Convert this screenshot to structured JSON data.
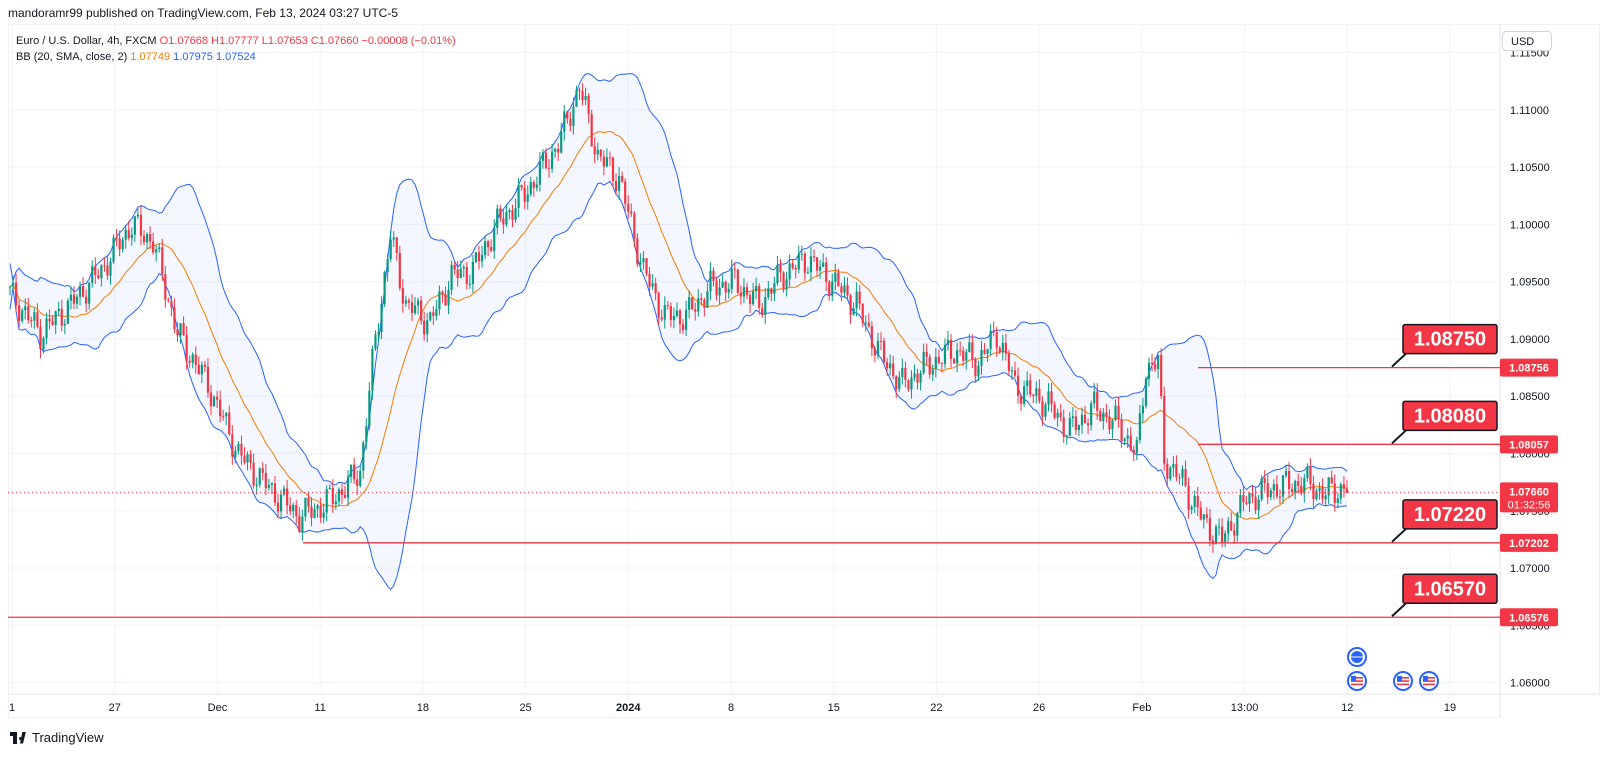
{
  "header": {
    "published_by": "mandoramr99 published on TradingView.com, Feb 13, 2024 03:27 UTC-5"
  },
  "legend": {
    "symbol": "Euro / U.S. Dollar, 4h, FXCM",
    "ohlc": "O1.07668  H1.07777  L1.07653  C1.07660  −0.00008 (−0.01%)",
    "indicator": "BB (20, SMA, close, 2)",
    "bb_basis": "1.07749",
    "bb_upper": "1.07975",
    "bb_lower": "1.07524"
  },
  "currency_button": "USD",
  "footer": {
    "brand": "TradingView"
  },
  "colors": {
    "up": "#089981",
    "down": "#f23645",
    "basis": "#f57c00",
    "band": "#2962ff",
    "band_fill": "#2962ff",
    "level_line": "#f23645",
    "label_bg": "#f23645",
    "label_border": "#131722"
  },
  "chart_data": {
    "type": "candlestick",
    "instrument": "EUR/USD",
    "timeframe": "4h",
    "x_ticks": [
      "1",
      "27",
      "Dec",
      "11",
      "18",
      "25",
      "2024",
      "8",
      "15",
      "22",
      "26",
      "Feb",
      "13:00",
      "12",
      "19"
    ],
    "y_ticks": [
      "1.11500",
      "1.11000",
      "1.10500",
      "1.10000",
      "1.09500",
      "1.09000",
      "1.08500",
      "1.08000",
      "1.07500",
      "1.07000",
      "1.06500",
      "1.06000"
    ],
    "ylim": [
      1.059,
      1.1175
    ],
    "current_price": "1.07660",
    "countdown": "01:32:56",
    "levels": [
      {
        "price": 1.0875,
        "label": "1.08750",
        "axis_label": "1.08756"
      },
      {
        "price": 1.0808,
        "label": "1.08080",
        "axis_label": "1.08057"
      },
      {
        "price": 1.0722,
        "label": "1.07220",
        "axis_label": "1.07202"
      },
      {
        "price": 1.0657,
        "label": "1.06570",
        "axis_label": "1.06576"
      }
    ],
    "close_path": [
      [
        0,
        1.094
      ],
      [
        10,
        1.0905
      ],
      [
        20,
        1.093
      ],
      [
        30,
        1.096
      ],
      [
        40,
        1.1
      ],
      [
        47,
        1.0985
      ],
      [
        55,
        1.0905
      ],
      [
        65,
        1.086
      ],
      [
        75,
        1.08
      ],
      [
        85,
        1.077
      ],
      [
        95,
        1.0745
      ],
      [
        103,
        1.0755
      ],
      [
        110,
        1.077
      ],
      [
        115,
        1.0785
      ],
      [
        120,
        1.09
      ],
      [
        125,
        1.099
      ],
      [
        130,
        1.093
      ],
      [
        138,
        1.0915
      ],
      [
        145,
        1.0955
      ],
      [
        152,
        1.096
      ],
      [
        160,
        1.1
      ],
      [
        170,
        1.103
      ],
      [
        180,
        1.107
      ],
      [
        187,
        1.112
      ],
      [
        193,
        1.106
      ],
      [
        200,
        1.104
      ],
      [
        208,
        1.096
      ],
      [
        215,
        1.092
      ],
      [
        222,
        1.092
      ],
      [
        230,
        1.0945
      ],
      [
        238,
        1.095
      ],
      [
        246,
        1.093
      ],
      [
        253,
        1.0955
      ],
      [
        262,
        1.097
      ],
      [
        270,
        1.095
      ],
      [
        278,
        1.093
      ],
      [
        285,
        1.089
      ],
      [
        293,
        1.086
      ],
      [
        300,
        1.0875
      ],
      [
        310,
        1.089
      ],
      [
        318,
        1.088
      ],
      [
        324,
        1.0905
      ],
      [
        330,
        1.086
      ],
      [
        340,
        1.0845
      ],
      [
        348,
        1.082
      ],
      [
        356,
        1.084
      ],
      [
        364,
        1.0825
      ],
      [
        370,
        1.08
      ],
      [
        373,
        1.0875
      ],
      [
        377,
        1.088
      ],
      [
        379,
        1.0795
      ],
      [
        385,
        1.0775
      ],
      [
        392,
        1.074
      ],
      [
        398,
        1.0725
      ],
      [
        406,
        1.076
      ],
      [
        415,
        1.077
      ],
      [
        425,
        1.0775
      ],
      [
        432,
        1.0765
      ],
      [
        438,
        1.077
      ]
    ],
    "overlays": [
      "Bollinger Bands basis (orange)",
      "Bollinger Bands upper/lower (blue) with shaded fill"
    ],
    "event_icons": [
      "globe-event",
      "us-flag-event",
      "us-flag-event",
      "us-flag-event"
    ]
  }
}
